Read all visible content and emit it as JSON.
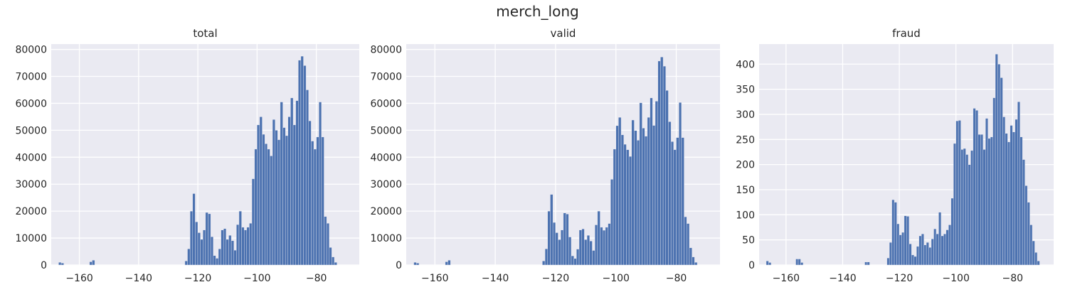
{
  "figure": {
    "suptitle": "merch_long"
  },
  "style": {
    "panel_bg": "#eaeaf2",
    "grid": "#ffffff",
    "bar": "#4c72b0",
    "text": "#262626"
  },
  "chart_data": [
    {
      "type": "bar",
      "title": "total",
      "xlabel": "",
      "ylabel": "",
      "grid": true,
      "xlim": [
        -169.5,
        -65.5
      ],
      "ylim": [
        0,
        82000
      ],
      "xticks": [
        -160,
        -140,
        -120,
        -100,
        -80
      ],
      "yticks": [
        0,
        10000,
        20000,
        30000,
        40000,
        50000,
        60000,
        70000,
        80000
      ],
      "bin_start": -167,
      "bin_width": 0.87,
      "values": [
        1000,
        700,
        0,
        0,
        0,
        0,
        0,
        0,
        0,
        0,
        0,
        0,
        1200,
        1800,
        0,
        0,
        0,
        0,
        0,
        0,
        0,
        0,
        0,
        0,
        0,
        0,
        0,
        0,
        0,
        0,
        0,
        0,
        0,
        0,
        0,
        0,
        0,
        0,
        0,
        0,
        0,
        0,
        0,
        0,
        0,
        0,
        0,
        0,
        0,
        1500,
        6000,
        20000,
        26500,
        16000,
        12000,
        9500,
        13000,
        19500,
        19000,
        10500,
        3500,
        2500,
        6000,
        13000,
        13500,
        9500,
        11000,
        9000,
        5500,
        15000,
        20000,
        14000,
        13000,
        14000,
        15500,
        32000,
        43000,
        52000,
        55000,
        48500,
        45000,
        43000,
        40500,
        54000,
        50000,
        46500,
        60500,
        51000,
        48000,
        55000,
        62000,
        52000,
        61000,
        76000,
        77500,
        74000,
        65000,
        53500,
        46000,
        43000,
        47500,
        60500,
        47500,
        18000,
        15500,
        6500,
        3000,
        1000
      ]
    },
    {
      "type": "bar",
      "title": "valid",
      "xlabel": "",
      "ylabel": "",
      "grid": true,
      "xlim": [
        -169.5,
        -65.5
      ],
      "ylim": [
        0,
        82000
      ],
      "xticks": [
        -160,
        -140,
        -120,
        -100,
        -80
      ],
      "yticks": [
        0,
        10000,
        20000,
        30000,
        40000,
        50000,
        60000,
        70000,
        80000
      ],
      "bin_start": -167,
      "bin_width": 0.87,
      "values": [
        1000,
        700,
        0,
        0,
        0,
        0,
        0,
        0,
        0,
        0,
        0,
        0,
        1200,
        1800,
        0,
        0,
        0,
        0,
        0,
        0,
        0,
        0,
        0,
        0,
        0,
        0,
        0,
        0,
        0,
        0,
        0,
        0,
        0,
        0,
        0,
        0,
        0,
        0,
        0,
        0,
        0,
        0,
        0,
        0,
        0,
        0,
        0,
        0,
        0,
        1500,
        6000,
        20000,
        26200,
        15800,
        12000,
        9400,
        13000,
        19300,
        18900,
        10400,
        3400,
        2400,
        5900,
        13000,
        13400,
        9400,
        11000,
        8900,
        5400,
        14900,
        20000,
        14000,
        12900,
        14000,
        15400,
        31800,
        43000,
        51700,
        54800,
        48300,
        44800,
        42800,
        40300,
        53800,
        49900,
        46300,
        60200,
        50800,
        47800,
        54800,
        62000,
        51800,
        60800,
        75700,
        77200,
        73800,
        64800,
        53200,
        45800,
        42800,
        47300,
        60300,
        47300,
        17900,
        15400,
        6400,
        3000,
        1000
      ]
    },
    {
      "type": "bar",
      "title": "fraud",
      "xlabel": "",
      "ylabel": "",
      "grid": true,
      "xlim": [
        -169.5,
        -65.5
      ],
      "ylim": [
        0,
        440
      ],
      "xticks": [
        -160,
        -140,
        -120,
        -100,
        -80
      ],
      "yticks": [
        0,
        50,
        100,
        150,
        200,
        250,
        300,
        350,
        400
      ],
      "bin_start": -167,
      "bin_width": 0.87,
      "values": [
        8,
        5,
        0,
        0,
        0,
        0,
        0,
        0,
        0,
        0,
        0,
        0,
        12,
        12,
        5,
        0,
        0,
        0,
        0,
        0,
        0,
        0,
        0,
        0,
        0,
        0,
        0,
        0,
        0,
        0,
        0,
        0,
        0,
        0,
        0,
        0,
        0,
        0,
        0,
        0,
        6,
        6,
        0,
        0,
        0,
        0,
        0,
        0,
        0,
        14,
        45,
        130,
        125,
        82,
        60,
        65,
        98,
        97,
        42,
        20,
        17,
        37,
        58,
        62,
        40,
        45,
        35,
        52,
        72,
        62,
        105,
        58,
        62,
        70,
        80,
        133,
        242,
        287,
        288,
        230,
        232,
        220,
        200,
        228,
        312,
        308,
        260,
        260,
        230,
        292,
        252,
        255,
        333,
        420,
        400,
        373,
        295,
        262,
        245,
        278,
        265,
        290,
        325,
        255,
        210,
        158,
        125,
        80,
        48,
        25,
        8
      ]
    }
  ]
}
